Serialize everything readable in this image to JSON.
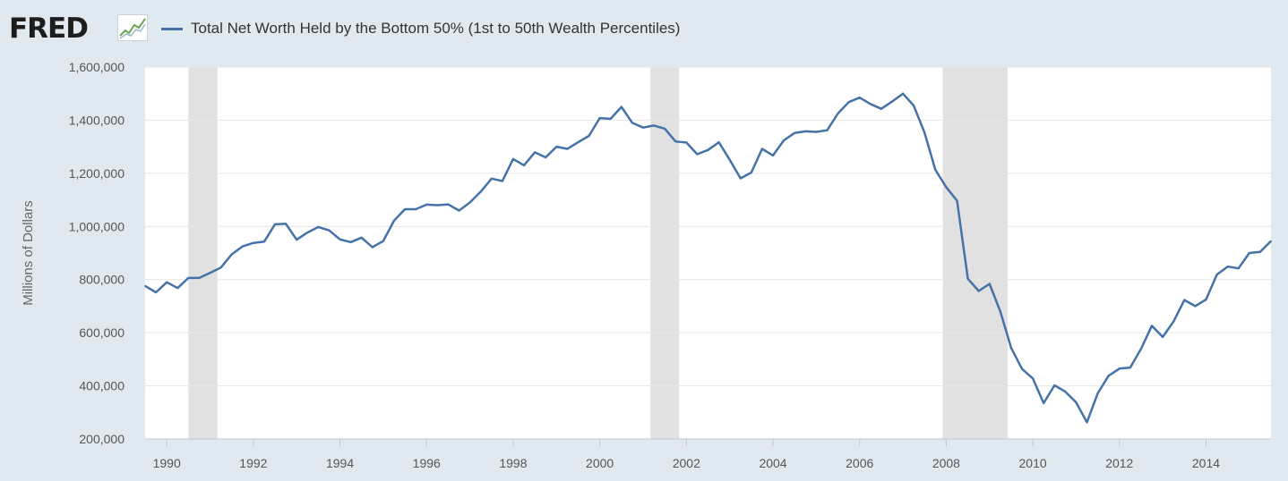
{
  "header": {
    "logo_text": "FRED",
    "logo_icon": "fred-chart-icon",
    "series_title": "Total Net Worth Held by the Bottom 50% (1st to 50th Wealth Percentiles)"
  },
  "colors": {
    "series": "#4572a7",
    "recession": "#e1e1e1",
    "background": "#e1e9f0",
    "plot": "#ffffff",
    "grid": "#e6e6e6"
  },
  "chart_data": {
    "type": "line",
    "title": "Total Net Worth Held by the Bottom 50% (1st to 50th Wealth Percentiles)",
    "ylabel": "Millions of Dollars",
    "xlabel": "",
    "xlim": [
      1989.5,
      2015.5
    ],
    "ylim": [
      200000,
      1600000
    ],
    "yticks": [
      200000,
      400000,
      600000,
      800000,
      1000000,
      1200000,
      1400000,
      1600000
    ],
    "ytick_labels": [
      "200,000",
      "400,000",
      "600,000",
      "800,000",
      "1,000,000",
      "1,200,000",
      "1,400,000",
      "1,600,000"
    ],
    "xticks": [
      1990,
      1992,
      1994,
      1996,
      1998,
      2000,
      2002,
      2004,
      2006,
      2008,
      2010,
      2012,
      2014
    ],
    "xtick_labels": [
      "1990",
      "1992",
      "1994",
      "1996",
      "1998",
      "2000",
      "2002",
      "2004",
      "2006",
      "2008",
      "2010",
      "2012",
      "2014"
    ],
    "grid": true,
    "legend": "top-left",
    "recessions": [
      [
        1990.5,
        1991.17
      ],
      [
        2001.17,
        2001.83
      ],
      [
        2007.92,
        2009.42
      ]
    ],
    "series": [
      {
        "name": "Total Net Worth Held by the Bottom 50% (1st to 50th Wealth Percentiles)",
        "x": [
          1989.5,
          1989.75,
          1990.0,
          1990.25,
          1990.5,
          1990.75,
          1991.0,
          1991.25,
          1991.5,
          1991.75,
          1992.0,
          1992.25,
          1992.5,
          1992.75,
          1993.0,
          1993.25,
          1993.5,
          1993.75,
          1994.0,
          1994.25,
          1994.5,
          1994.75,
          1995.0,
          1995.25,
          1995.5,
          1995.75,
          1996.0,
          1996.25,
          1996.5,
          1996.75,
          1997.0,
          1997.25,
          1997.5,
          1997.75,
          1998.0,
          1998.25,
          1998.5,
          1998.75,
          1999.0,
          1999.25,
          1999.5,
          1999.75,
          2000.0,
          2000.25,
          2000.5,
          2000.75,
          2001.0,
          2001.25,
          2001.5,
          2001.75,
          2002.0,
          2002.25,
          2002.5,
          2002.75,
          2003.0,
          2003.25,
          2003.5,
          2003.75,
          2004.0,
          2004.25,
          2004.5,
          2004.75,
          2005.0,
          2005.25,
          2005.5,
          2005.75,
          2006.0,
          2006.25,
          2006.5,
          2006.75,
          2007.0,
          2007.25,
          2007.5,
          2007.75,
          2008.0,
          2008.25,
          2008.5,
          2008.75,
          2009.0,
          2009.25,
          2009.5,
          2009.75,
          2010.0,
          2010.25,
          2010.5,
          2010.75,
          2011.0,
          2011.25,
          2011.5,
          2011.75,
          2012.0,
          2012.25,
          2012.5,
          2012.75,
          2013.0,
          2013.25,
          2013.5,
          2013.75,
          2014.0,
          2014.25,
          2014.5,
          2014.75,
          2015.0,
          2015.25,
          2015.5
        ],
        "values": [
          776000,
          752000,
          790000,
          768000,
          806000,
          806000,
          825000,
          845000,
          895000,
          925000,
          938000,
          943000,
          1008000,
          1010000,
          950000,
          977000,
          998000,
          985000,
          951000,
          941000,
          958000,
          922000,
          945000,
          1022000,
          1065000,
          1065000,
          1082000,
          1080000,
          1083000,
          1060000,
          1090000,
          1131000,
          1180000,
          1171000,
          1254000,
          1230000,
          1279000,
          1260000,
          1300000,
          1292000,
          1317000,
          1341000,
          1408000,
          1405000,
          1450000,
          1390000,
          1372000,
          1380000,
          1368000,
          1320000,
          1316000,
          1272000,
          1288000,
          1317000,
          1251000,
          1181000,
          1203000,
          1292000,
          1267000,
          1324000,
          1352000,
          1358000,
          1356000,
          1362000,
          1425000,
          1468000,
          1485000,
          1461000,
          1443000,
          1470000,
          1500000,
          1455000,
          1353000,
          1213000,
          1148000,
          1097000,
          803000,
          757000,
          784000,
          680000,
          543000,
          464000,
          428000,
          335000,
          402000,
          378000,
          338000,
          263000,
          372000,
          438000,
          465000,
          469000,
          540000,
          626000,
          584000,
          642000,
          723000,
          700000,
          725000,
          819000,
          849000,
          842000,
          900000,
          904000,
          945000
        ]
      }
    ]
  }
}
